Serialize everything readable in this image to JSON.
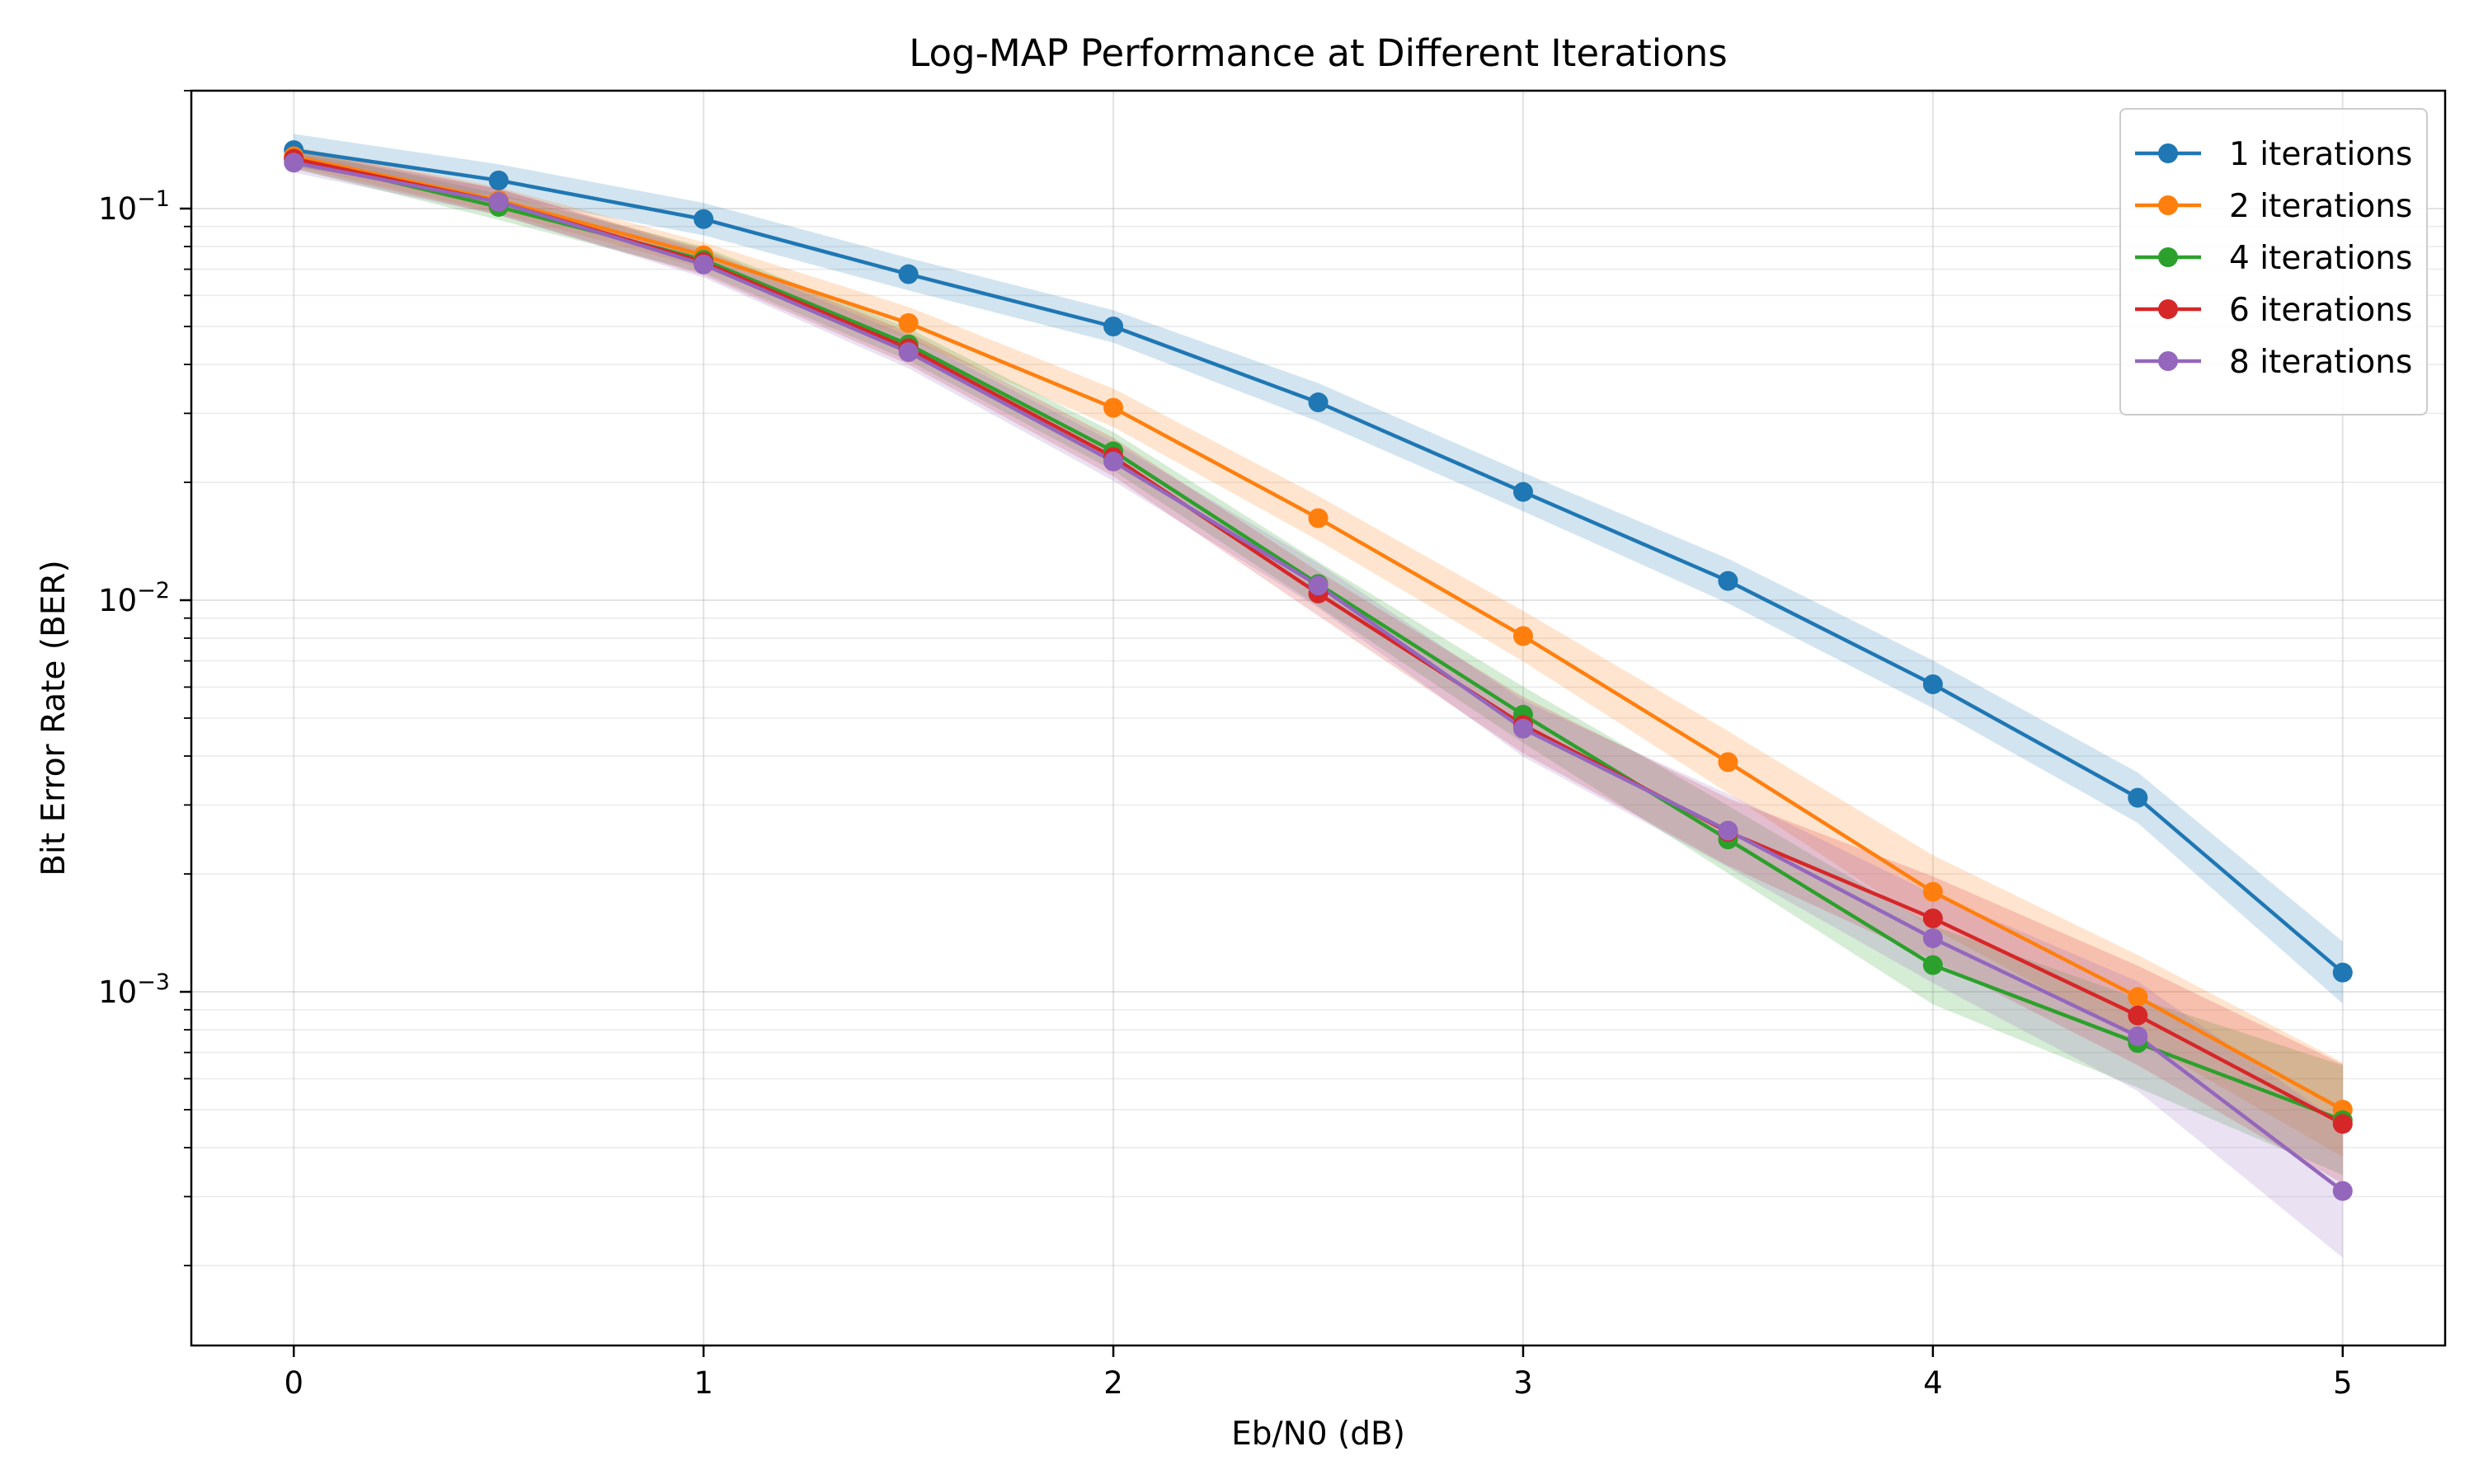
{
  "chart_data": {
    "type": "line",
    "title": "Log-MAP Performance at Different Iterations",
    "xlabel": "Eb/N0 (dB)",
    "ylabel": "Bit Error Rate (BER)",
    "yscale": "log",
    "xlim": [
      -0.25,
      5.25
    ],
    "ylim": [
      0.000125,
      0.2
    ],
    "grid": true,
    "legend_position": "top-right",
    "x_ticks": [
      0,
      1,
      2,
      3,
      4,
      5
    ],
    "x_tick_labels": [
      "0",
      "1",
      "2",
      "3",
      "4",
      "5"
    ],
    "y_ticks": [
      0.001,
      0.01,
      0.1
    ],
    "y_tick_labels": [
      {
        "base": "10",
        "exp": "−3"
      },
      {
        "base": "10",
        "exp": "−2"
      },
      {
        "base": "10",
        "exp": "−1"
      }
    ],
    "x": [
      0,
      0.5,
      1,
      1.5,
      2,
      2.5,
      3,
      3.5,
      4,
      4.5,
      5
    ],
    "series": [
      {
        "name": "1 iterations",
        "color": "#1f77b4",
        "values": [
          0.141,
          0.118,
          0.094,
          0.068,
          0.05,
          0.032,
          0.0189,
          0.0112,
          0.0061,
          0.00313,
          0.00112
        ],
        "band": [
          0.1,
          0.1,
          0.1,
          0.1,
          0.1,
          0.12,
          0.12,
          0.14,
          0.15,
          0.16,
          0.2
        ]
      },
      {
        "name": "2 iterations",
        "color": "#ff7f0e",
        "values": [
          0.136,
          0.105,
          0.076,
          0.051,
          0.031,
          0.0162,
          0.0081,
          0.00386,
          0.0018,
          0.00097,
          0.0005
        ],
        "band": [
          0.06,
          0.08,
          0.08,
          0.1,
          0.12,
          0.14,
          0.16,
          0.2,
          0.24,
          0.28,
          0.32
        ]
      },
      {
        "name": "4 iterations",
        "color": "#2ca02c",
        "values": [
          0.134,
          0.101,
          0.074,
          0.045,
          0.024,
          0.011,
          0.0051,
          0.00245,
          0.00117,
          0.00074,
          0.00047
        ],
        "band": [
          0.06,
          0.08,
          0.08,
          0.1,
          0.12,
          0.14,
          0.18,
          0.22,
          0.26,
          0.3,
          0.38
        ]
      },
      {
        "name": "6 iterations",
        "color": "#d62728",
        "values": [
          0.134,
          0.104,
          0.073,
          0.044,
          0.0232,
          0.0104,
          0.0048,
          0.00256,
          0.00154,
          0.00087,
          0.00046
        ],
        "band": [
          0.06,
          0.08,
          0.08,
          0.1,
          0.12,
          0.14,
          0.18,
          0.22,
          0.28,
          0.34,
          0.42
        ]
      },
      {
        "name": "8 iterations",
        "color": "#9467bd",
        "values": [
          0.131,
          0.104,
          0.072,
          0.043,
          0.0226,
          0.0109,
          0.0047,
          0.00258,
          0.00137,
          0.00077,
          0.00031
        ],
        "band": [
          0.06,
          0.08,
          0.08,
          0.1,
          0.12,
          0.14,
          0.18,
          0.24,
          0.3,
          0.38,
          0.48
        ]
      }
    ]
  }
}
